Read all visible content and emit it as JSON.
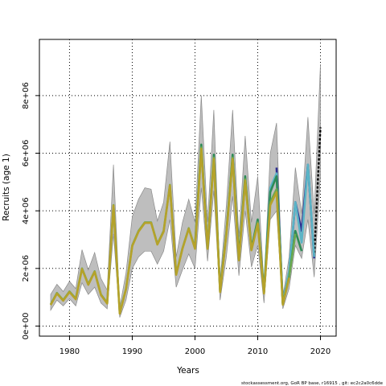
{
  "chart_data": {
    "type": "line",
    "xlabel": "Years",
    "ylabel": "Recruits (age 1)",
    "xlim": [
      1975.2,
      2022.5
    ],
    "ylim": [
      -350000,
      9950000
    ],
    "x_ticks": [
      1980,
      1990,
      2000,
      2010,
      2020
    ],
    "y_ticks": [
      0,
      2000000,
      4000000,
      6000000,
      8000000
    ],
    "y_tick_labels": [
      "0e+00",
      "2e+06",
      "4e+06",
      "6e+06",
      "8e+06"
    ],
    "grid": true,
    "footer": "stockassessment.org, GoR BP base, r16915 , git: ec2c2a0c6dde",
    "band": {
      "name": "confidence interval",
      "color": "#bebebe",
      "x": [
        1977,
        1978,
        1979,
        1980,
        1981,
        1982,
        1983,
        1984,
        1985,
        1986,
        1987,
        1988,
        1989,
        1990,
        1991,
        1992,
        1993,
        1994,
        1995,
        1996,
        1997,
        1998,
        1999,
        2000,
        2001,
        2002,
        2003,
        2004,
        2005,
        2006,
        2007,
        2008,
        2009,
        2010,
        2011,
        2012,
        2013,
        2014,
        2015,
        2016,
        2017,
        2018,
        2019,
        2020
      ],
      "lower": [
        550000,
        900000,
        700000,
        950000,
        700000,
        1500000,
        1100000,
        1350000,
        800000,
        600000,
        3200000,
        300000,
        900000,
        2000000,
        2400000,
        2600000,
        2600000,
        2150000,
        2600000,
        3700000,
        1350000,
        1950000,
        2500000,
        2000000,
        4800000,
        2250000,
        4700000,
        900000,
        2400000,
        4500000,
        1750000,
        4000000,
        2050000,
        2800000,
        800000,
        3700000,
        4000000,
        600000,
        1300000,
        2800000,
        2350000,
        3700000,
        1700000,
        5200000
      ],
      "upper": [
        1100000,
        1450000,
        1200000,
        1550000,
        1300000,
        2650000,
        1950000,
        2550000,
        1650000,
        1250000,
        5600000,
        650000,
        1850000,
        3800000,
        4400000,
        4800000,
        4750000,
        3650000,
        4300000,
        6400000,
        2400000,
        3600000,
        4400000,
        3600000,
        8000000,
        3600000,
        7500000,
        1550000,
        4200000,
        7500000,
        3100000,
        6600000,
        3600000,
        5200000,
        1400000,
        6000000,
        7050000,
        1000000,
        2400000,
        5500000,
        3900000,
        7250000,
        3900000,
        9100000
      ]
    },
    "series": [
      {
        "color": "#000000",
        "dashed": true,
        "x": [
          2019,
          2020
        ],
        "values": [
          2400000,
          6900000
        ]
      },
      {
        "color": "#2b2b8f",
        "x": [
          2013,
          2014,
          2015,
          2016,
          2017,
          2018,
          2019
        ],
        "values": [
          5500000,
          780000,
          1800000,
          4300000,
          3300000,
          5600000,
          2350000
        ]
      },
      {
        "color": "#5ab4c6",
        "x": [
          2011,
          2012,
          2013,
          2014,
          2015,
          2016,
          2017,
          2018,
          2019
        ],
        "values": [
          1250000,
          4800000,
          5300000,
          800000,
          1900000,
          4300000,
          2900000,
          5600000,
          2400000
        ]
      },
      {
        "color": "#2e8b57",
        "x": [
          2000,
          2001,
          2002,
          2003,
          2004,
          2005,
          2006,
          2007,
          2008,
          2009,
          2010,
          2011,
          2012,
          2013,
          2014,
          2015,
          2016,
          2017
        ],
        "values": [
          2800000,
          6300000,
          2700000,
          5950000,
          1250000,
          3250000,
          5950000,
          2400000,
          5200000,
          2700000,
          3700000,
          1200000,
          4650000,
          5200000,
          780000,
          1700000,
          3300000,
          2600000
        ]
      },
      {
        "color": "#6aa84f",
        "x": [
          1977,
          1978,
          1979,
          1980,
          1981,
          1982,
          1983,
          1984,
          1985,
          1986,
          1987,
          1988,
          1989,
          1990,
          1991,
          1992,
          1993,
          1994,
          1995,
          1996,
          1997,
          1998,
          1999,
          2000,
          2001,
          2002,
          2003,
          2004,
          2005,
          2006,
          2007,
          2008,
          2009,
          2010,
          2011,
          2012,
          2013,
          2014,
          2015,
          2016
        ],
        "values": [
          750000,
          1150000,
          900000,
          1200000,
          950000,
          2000000,
          1450000,
          1900000,
          1100000,
          800000,
          4200000,
          450000,
          1300000,
          2800000,
          3300000,
          3600000,
          3600000,
          2850000,
          3300000,
          4900000,
          1800000,
          2700000,
          3400000,
          2700000,
          6200000,
          2700000,
          5850000,
          1200000,
          3200000,
          5850000,
          2300000,
          5100000,
          2650000,
          3600000,
          1150000,
          4300000,
          4750000,
          760000,
          1700000,
          3200000
        ]
      },
      {
        "color": "#b5a22a",
        "x": [
          1977,
          1978,
          1979,
          1980,
          1981,
          1982,
          1983,
          1984,
          1985,
          1986,
          1987,
          1988,
          1989,
          1990,
          1991,
          1992,
          1993,
          1994,
          1995,
          1996,
          1997,
          1998,
          1999,
          2000,
          2001,
          2002,
          2003,
          2004,
          2005,
          2006,
          2007,
          2008,
          2009,
          2010,
          2011,
          2012,
          2013,
          2014,
          2015
        ],
        "values": [
          730000,
          1130000,
          880000,
          1180000,
          930000,
          1980000,
          1430000,
          1880000,
          1080000,
          780000,
          4180000,
          430000,
          1280000,
          2780000,
          3280000,
          3580000,
          3580000,
          2830000,
          3280000,
          4880000,
          1780000,
          2680000,
          3380000,
          2680000,
          6150000,
          2680000,
          5800000,
          1180000,
          3180000,
          5800000,
          2280000,
          5050000,
          2630000,
          3550000,
          1130000,
          4200000,
          4650000,
          740000,
          1680000
        ]
      }
    ]
  }
}
